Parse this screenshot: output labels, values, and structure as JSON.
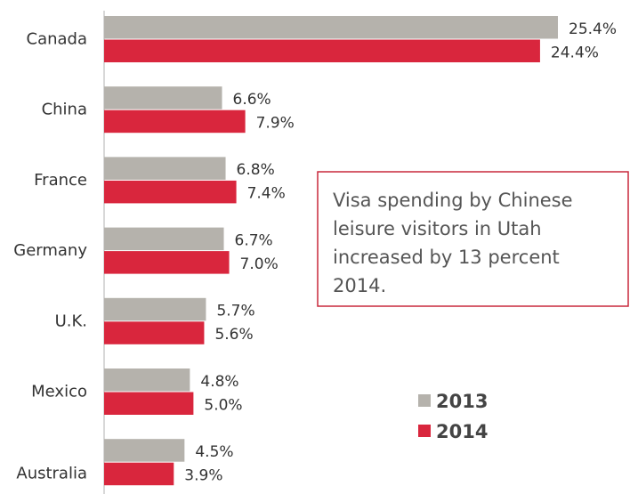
{
  "chart_data": {
    "type": "bar",
    "orientation": "horizontal",
    "categories": [
      "Canada",
      "China",
      "France",
      "Germany",
      "U.K.",
      "Mexico",
      "Australia"
    ],
    "series": [
      {
        "name": "2013",
        "color": "#b5b2ac",
        "values": [
          25.4,
          6.6,
          6.8,
          6.7,
          5.7,
          4.8,
          4.5
        ],
        "value_labels": [
          "25.4%",
          "6.6%",
          "6.8%",
          "6.7%",
          "5.7%",
          "4.8%",
          "4.5%"
        ]
      },
      {
        "name": "2014",
        "color": "#d9263d",
        "values": [
          24.4,
          7.9,
          7.4,
          7.0,
          5.6,
          5.0,
          3.9
        ],
        "value_labels": [
          "24.4%",
          "7.9%",
          "7.4%",
          "7.0%",
          "5.6%",
          "5.0%",
          "3.9%"
        ]
      }
    ],
    "annotation": [
      "Visa spending by Chinese",
      "leisure visitors in Utah",
      "increased by 13 percent",
      "2014."
    ],
    "annotation_color": "#c8283c",
    "legend": "lower right"
  }
}
